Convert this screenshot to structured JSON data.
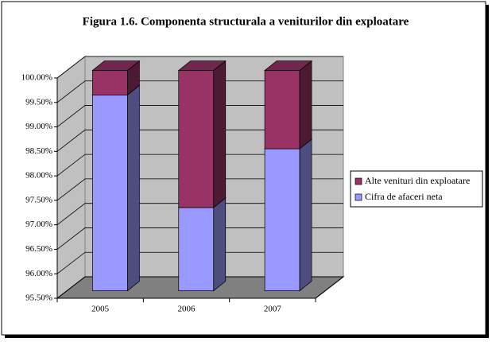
{
  "chart_data": {
    "type": "bar3d-stacked",
    "title": "Figura 1.6. Componenta structurala a veniturilor din exploatare",
    "categories": [
      "2005",
      "2006",
      "2007"
    ],
    "series": [
      {
        "name": "Cifra de afaceri neta",
        "color": "#9999ff",
        "values": [
          99.5,
          97.2,
          98.4
        ]
      },
      {
        "name": "Alte venituri din exploatare",
        "color": "#993366",
        "values": [
          0.5,
          2.8,
          1.6
        ]
      }
    ],
    "ylim": [
      95.5,
      100
    ],
    "yticks": [
      {
        "value": 95.5,
        "label": "95.50%"
      },
      {
        "value": 96,
        "label": "96.00%"
      },
      {
        "value": 96.5,
        "label": "96.50%"
      },
      {
        "value": 97,
        "label": "97.00%"
      },
      {
        "value": 97.5,
        "label": "97.50%"
      },
      {
        "value": 98,
        "label": "98.00%"
      },
      {
        "value": 98.5,
        "label": "98.50%"
      },
      {
        "value": 99,
        "label": "99.00%"
      },
      {
        "value": 99.5,
        "label": "99.50%"
      },
      {
        "value": 100,
        "label": "100.00%"
      }
    ],
    "grid": true,
    "legend": "right"
  }
}
